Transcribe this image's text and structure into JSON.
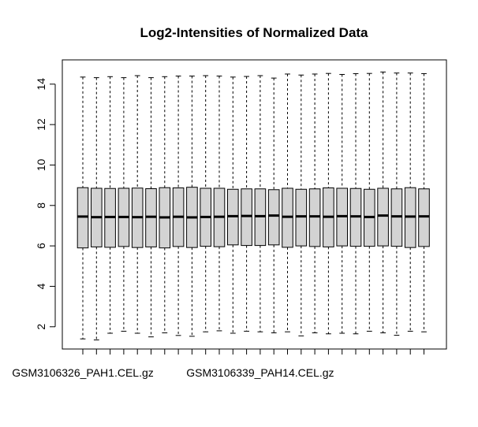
{
  "chart_data": {
    "type": "box",
    "title": "Log2-Intensities of Normalized Data",
    "xlabel": "",
    "ylabel": "",
    "ylim": [
      0.9,
      15.2
    ],
    "yticks": [
      2,
      4,
      6,
      8,
      10,
      12,
      14
    ],
    "grid": false,
    "legend": "none",
    "colors": {
      "box_fill": "#d3d3d3",
      "stroke": "#000000",
      "background": "#ffffff"
    },
    "xtick_labels": [
      {
        "index": 0,
        "text": "GSM3106326_PAH1.CEL.gz"
      },
      {
        "index": 13,
        "text": "GSM3106339_PAH14.CEL.gz"
      }
    ],
    "boxes": [
      {
        "min": 1.4,
        "q1": 5.9,
        "median": 7.45,
        "q3": 8.88,
        "max": 14.35
      },
      {
        "min": 1.35,
        "q1": 5.95,
        "median": 7.42,
        "q3": 8.85,
        "max": 14.32
      },
      {
        "min": 1.68,
        "q1": 5.93,
        "median": 7.43,
        "q3": 8.84,
        "max": 14.37
      },
      {
        "min": 1.78,
        "q1": 5.97,
        "median": 7.43,
        "q3": 8.85,
        "max": 14.32
      },
      {
        "min": 1.68,
        "q1": 5.92,
        "median": 7.42,
        "q3": 8.86,
        "max": 14.42
      },
      {
        "min": 1.5,
        "q1": 5.95,
        "median": 7.44,
        "q3": 8.83,
        "max": 14.32
      },
      {
        "min": 1.7,
        "q1": 5.9,
        "median": 7.41,
        "q3": 8.88,
        "max": 14.37
      },
      {
        "min": 1.57,
        "q1": 5.97,
        "median": 7.44,
        "q3": 8.87,
        "max": 14.4
      },
      {
        "min": 1.53,
        "q1": 5.92,
        "median": 7.41,
        "q3": 8.9,
        "max": 14.4
      },
      {
        "min": 1.75,
        "q1": 5.98,
        "median": 7.43,
        "q3": 8.85,
        "max": 14.42
      },
      {
        "min": 1.8,
        "q1": 5.96,
        "median": 7.44,
        "q3": 8.85,
        "max": 14.4
      },
      {
        "min": 1.68,
        "q1": 6.05,
        "median": 7.47,
        "q3": 8.8,
        "max": 14.35
      },
      {
        "min": 1.78,
        "q1": 6.02,
        "median": 7.48,
        "q3": 8.82,
        "max": 14.38
      },
      {
        "min": 1.75,
        "q1": 6.02,
        "median": 7.47,
        "q3": 8.82,
        "max": 14.42
      },
      {
        "min": 1.7,
        "q1": 6.05,
        "median": 7.5,
        "q3": 8.78,
        "max": 14.3
      },
      {
        "min": 1.75,
        "q1": 5.93,
        "median": 7.44,
        "q3": 8.85,
        "max": 14.5
      },
      {
        "min": 1.55,
        "q1": 6.0,
        "median": 7.46,
        "q3": 8.8,
        "max": 14.45
      },
      {
        "min": 1.7,
        "q1": 5.97,
        "median": 7.46,
        "q3": 8.82,
        "max": 14.5
      },
      {
        "min": 1.65,
        "q1": 5.95,
        "median": 7.44,
        "q3": 8.87,
        "max": 14.53
      },
      {
        "min": 1.68,
        "q1": 6.0,
        "median": 7.47,
        "q3": 8.85,
        "max": 14.48
      },
      {
        "min": 1.65,
        "q1": 5.98,
        "median": 7.46,
        "q3": 8.84,
        "max": 14.52
      },
      {
        "min": 1.78,
        "q1": 5.98,
        "median": 7.43,
        "q3": 8.8,
        "max": 14.53
      },
      {
        "min": 1.7,
        "q1": 6.0,
        "median": 7.5,
        "q3": 8.85,
        "max": 14.6
      },
      {
        "min": 1.58,
        "q1": 5.98,
        "median": 7.46,
        "q3": 8.82,
        "max": 14.55
      },
      {
        "min": 1.78,
        "q1": 5.92,
        "median": 7.45,
        "q3": 8.88,
        "max": 14.55
      },
      {
        "min": 1.75,
        "q1": 5.97,
        "median": 7.46,
        "q3": 8.82,
        "max": 14.52
      }
    ]
  }
}
